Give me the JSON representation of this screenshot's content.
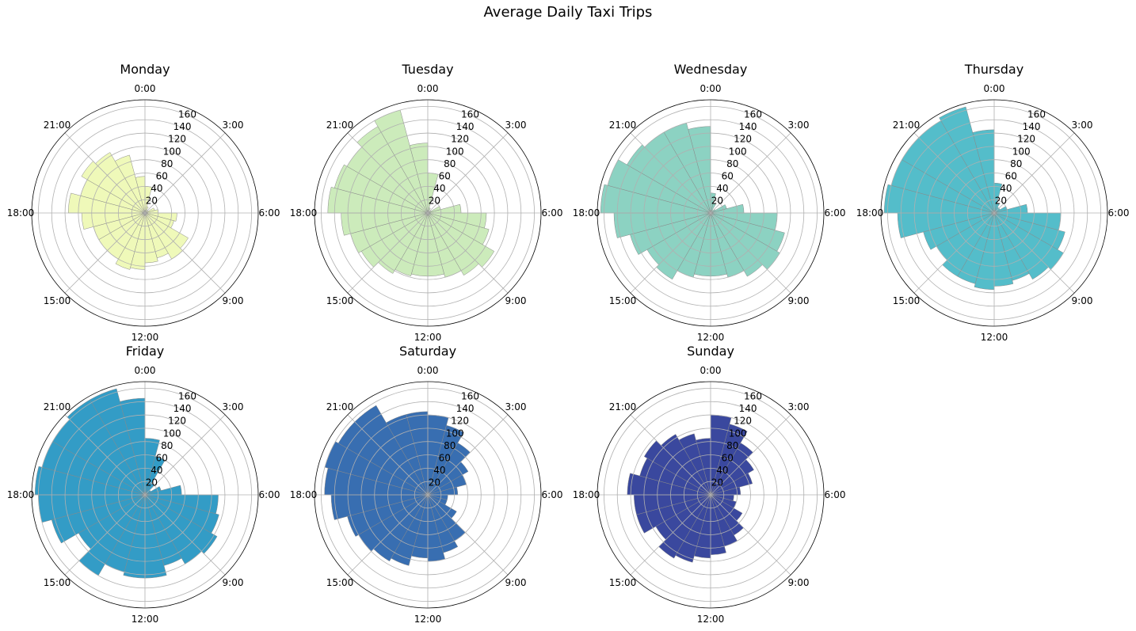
{
  "chart_data": {
    "title": "Average Daily Taxi Trips",
    "type": "polar-bar",
    "rlim": [
      0,
      170
    ],
    "r_ticks": [
      20,
      40,
      60,
      80,
      100,
      120,
      140,
      160
    ],
    "theta_ticks": [
      "0:00",
      "3:00",
      "6:00",
      "9:00",
      "12:00",
      "15:00",
      "18:00",
      "21:00"
    ],
    "theta_direction": "clockwise",
    "theta_zero": "top",
    "grid": true,
    "subplots": [
      {
        "title": "Monday",
        "color": "#edf8b1",
        "values": [
          40,
          10,
          5,
          5,
          15,
          20,
          48,
          45,
          75,
          80,
          70,
          75,
          85,
          88,
          80,
          80,
          80,
          95,
          115,
          100,
          110,
          105,
          90,
          55
        ]
      },
      {
        "title": "Tuesday",
        "color": "#c7e9b4",
        "values": [
          60,
          8,
          3,
          5,
          20,
          50,
          88,
          95,
          115,
          108,
          100,
          95,
          95,
          98,
          105,
          115,
          120,
          130,
          150,
          145,
          140,
          150,
          160,
          105
        ]
      },
      {
        "title": "Wednesday",
        "color": "#7fcdbb",
        "values": [
          30,
          15,
          5,
          8,
          25,
          50,
          100,
          115,
          120,
          110,
          100,
          95,
          95,
          100,
          115,
          110,
          125,
          145,
          165,
          160,
          145,
          140,
          140,
          130
        ]
      },
      {
        "title": "Thursday",
        "color": "#41b6c4",
        "values": [
          45,
          15,
          10,
          10,
          20,
          50,
          100,
          110,
          120,
          115,
          105,
          110,
          115,
          110,
          110,
          100,
          110,
          145,
          165,
          160,
          160,
          160,
          165,
          125
        ]
      },
      {
        "title": "Friday",
        "color": "#1d91c0",
        "values": [
          85,
          60,
          20,
          10,
          25,
          55,
          110,
          115,
          125,
          120,
          110,
          125,
          125,
          120,
          140,
          115,
          145,
          160,
          165,
          160,
          160,
          165,
          165,
          145
        ]
      },
      {
        "title": "Saturday",
        "color": "#225ea8",
        "values": [
          120,
          108,
          90,
          70,
          60,
          45,
          30,
          30,
          50,
          80,
          90,
          100,
          95,
          110,
          115,
          120,
          125,
          145,
          155,
          160,
          155,
          155,
          125,
          125
        ]
      },
      {
        "title": "Sunday",
        "color": "#253494",
        "values": [
          120,
          110,
          90,
          75,
          65,
          45,
          35,
          40,
          55,
          70,
          80,
          90,
          95,
          105,
          110,
          95,
          115,
          115,
          125,
          110,
          115,
          105,
          95,
          85
        ]
      }
    ]
  }
}
